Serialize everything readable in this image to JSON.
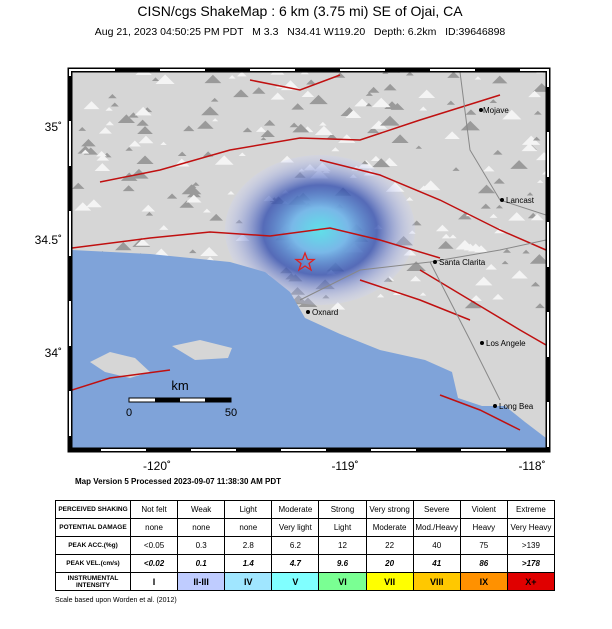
{
  "header": {
    "title": "CISN/cgs ShakeMap : 6  km (3.75 mi) SE of Ojai, CA",
    "subtitle": "Aug 21, 2023 04:50:25 PM PDT   M 3.3   N34.41 W119.20   Depth: 6.2km   ID:39646898"
  },
  "map": {
    "lat_labels": [
      "35˚",
      "34.5˚",
      "34˚"
    ],
    "lon_labels": [
      "-120˚",
      "-119˚",
      "-118˚"
    ],
    "cities": [
      "Mojave",
      "Lancast",
      "Santa Clarita",
      "Oxnard",
      "Los Angele",
      "Long Bea"
    ],
    "scale_bar": {
      "unit": "km",
      "start": "0",
      "end": "50"
    }
  },
  "version": "Map Version 5 Processed 2023-09-07 11:38:30 AM PDT",
  "table": {
    "row_headers": [
      "PERCEIVED SHAKING",
      "POTENTIAL DAMAGE",
      "PEAK ACC.(%g)",
      "PEAK VEL.(cm/s)",
      "INSTRUMENTAL INTENSITY"
    ],
    "rows": [
      [
        "Not felt",
        "Weak",
        "Light",
        "Moderate",
        "Strong",
        "Very strong",
        "Severe",
        "Violent",
        "Extreme"
      ],
      [
        "none",
        "none",
        "none",
        "Very light",
        "Light",
        "Moderate",
        "Mod./Heavy",
        "Heavy",
        "Very Heavy"
      ],
      [
        "<0.05",
        "0.3",
        "2.8",
        "6.2",
        "12",
        "22",
        "40",
        "75",
        ">139"
      ],
      [
        "<0.02",
        "0.1",
        "1.4",
        "4.7",
        "9.6",
        "20",
        "41",
        "86",
        ">178"
      ],
      [
        "I",
        "II-III",
        "IV",
        "V",
        "VI",
        "VII",
        "VIII",
        "IX",
        "X+"
      ]
    ],
    "intensity_colors": [
      "#ffffff",
      "#bfccff",
      "#a0e6ff",
      "#80ffff",
      "#7aff93",
      "#ffff00",
      "#ffc800",
      "#ff9100",
      "#e00000"
    ]
  },
  "footer": "Scale based upon Worden et al. (2012)"
}
